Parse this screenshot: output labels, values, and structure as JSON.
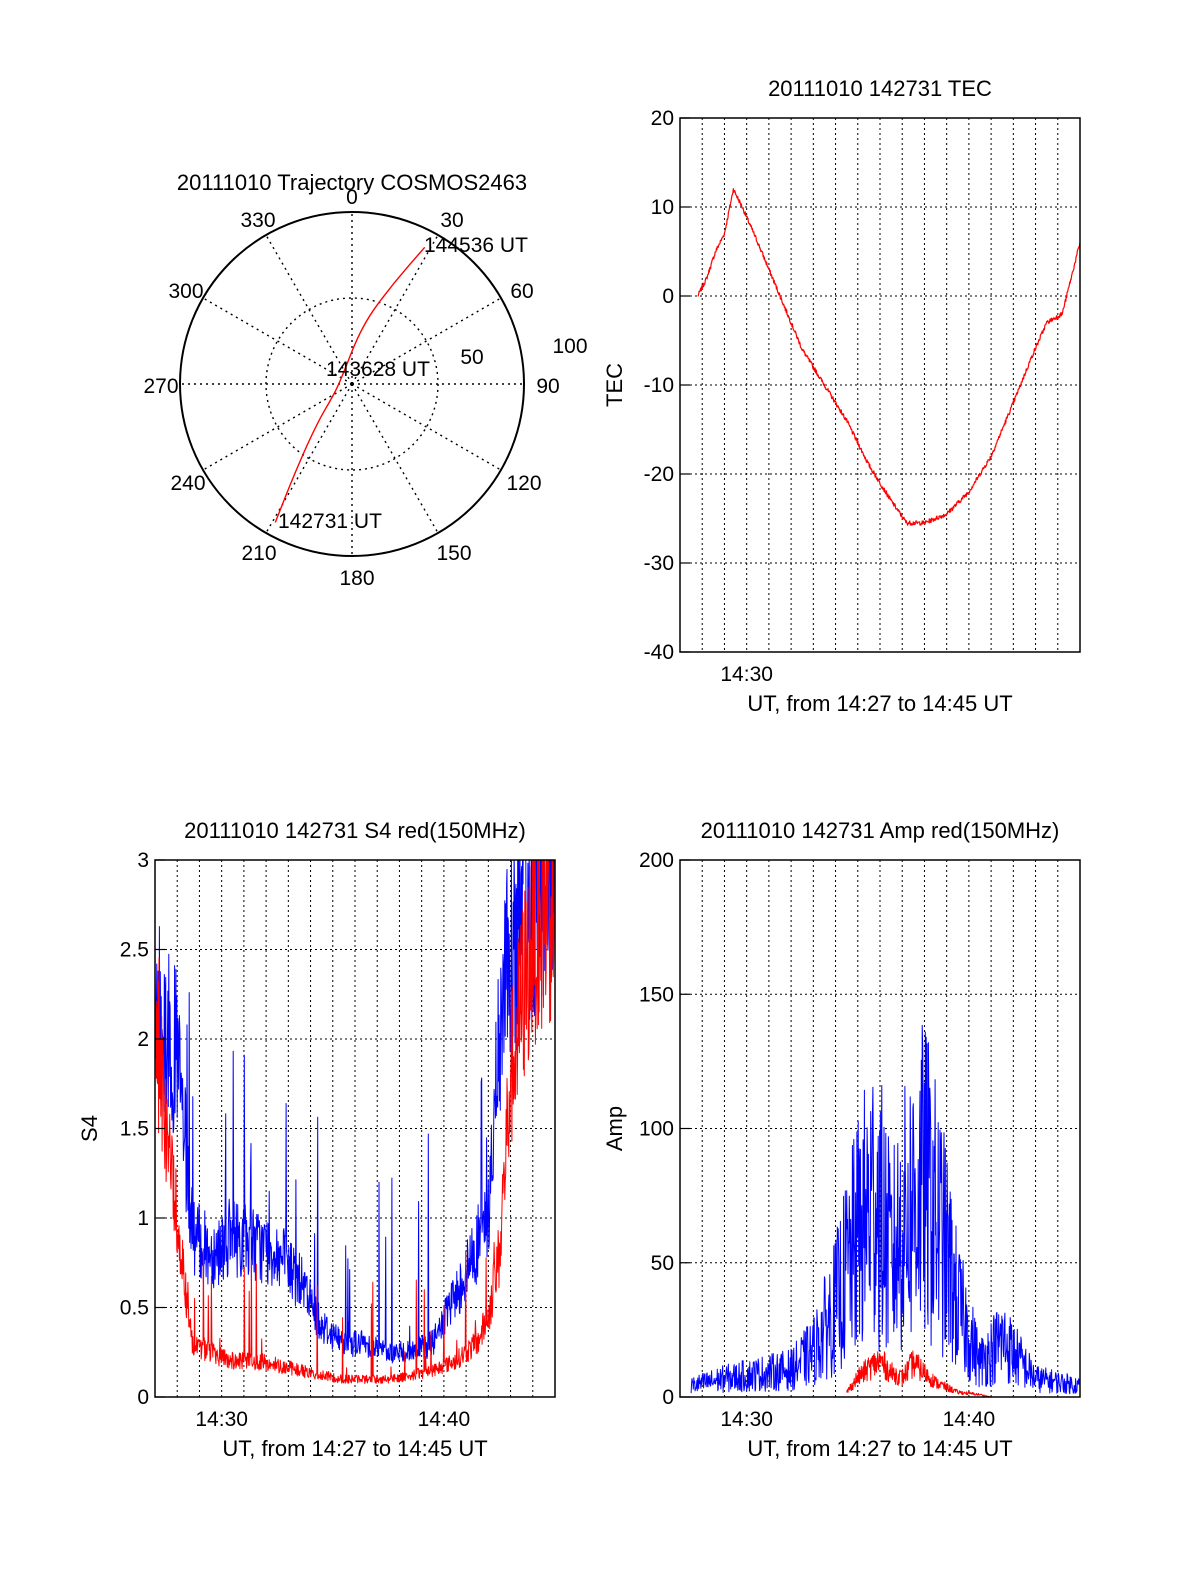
{
  "colors": {
    "red": "#ff0000",
    "blue": "#0000ff",
    "axis": "#000000",
    "grid": "#000000"
  },
  "chart_data": [
    {
      "id": "trajectory",
      "type": "polar",
      "title": "20111010 Trajectory COSMOS2463",
      "azimuth_labels": [
        "0",
        "30",
        "60",
        "90",
        "120",
        "150",
        "180",
        "210",
        "240",
        "270",
        "300",
        "330"
      ],
      "radius_labels": [
        "50",
        "100"
      ],
      "grid": true,
      "track": {
        "color": "#ff0000",
        "points": [
          {
            "az": 209,
            "r": 92
          },
          {
            "az": 213,
            "r": 60
          },
          {
            "az": 222,
            "r": 30
          },
          {
            "az": 240,
            "r": 12
          },
          {
            "az": 300,
            "r": 7
          },
          {
            "az": 10,
            "r": 35
          },
          {
            "az": 22,
            "r": 62
          },
          {
            "az": 28,
            "r": 90
          }
        ],
        "annotations": [
          {
            "text": "142731 UT",
            "az": 209,
            "r": 92
          },
          {
            "text": "143628 UT",
            "az": 290,
            "r": 5
          },
          {
            "text": "144536 UT",
            "az": 28,
            "r": 90
          }
        ]
      }
    },
    {
      "id": "tec",
      "type": "line",
      "title": "20111010 142731 TEC",
      "xlabel": "UT, from 14:27 to 14:45 UT",
      "ylabel": "TEC",
      "xlim": [
        "14:27",
        "14:45"
      ],
      "ylim": [
        -40,
        20
      ],
      "yticks": [
        "20",
        "10",
        "0",
        "-10",
        "-20",
        "-30",
        "-40"
      ],
      "xticks": [
        "14:30"
      ],
      "grid": true,
      "series": [
        {
          "color": "#ff0000",
          "x": [
            "14:27.8",
            "14:28.2",
            "14:28.6",
            "14:29.0",
            "14:29.4",
            "14:29.8",
            "14:30.5",
            "14:31.5",
            "14:32.5",
            "14:33.5",
            "14:34.5",
            "14:35.5",
            "14:36.5",
            "14:37.2",
            "14:38.0",
            "14:39.0",
            "14:40.0",
            "14:41.0",
            "14:42.0",
            "14:42.8",
            "14:43.5",
            "14:44.2",
            "14:44.6",
            "14:45.0"
          ],
          "y": [
            0,
            2,
            5,
            7,
            12,
            10,
            6,
            0,
            -6,
            -10,
            -14,
            -19,
            -23,
            -25.5,
            -25.5,
            -24.5,
            -22,
            -18,
            -12,
            -7,
            -3,
            -2,
            2,
            6
          ]
        }
      ]
    },
    {
      "id": "s4",
      "type": "line",
      "title": "20111010 142731 S4 red(150MHz)",
      "xlabel": "UT, from 14:27 to 14:45 UT",
      "ylabel": "S4",
      "xlim": [
        "14:27",
        "14:45"
      ],
      "ylim": [
        0,
        3
      ],
      "yticks": [
        "3",
        "2.5",
        "2",
        "1.5",
        "1",
        "0.5",
        "0"
      ],
      "xticks": [
        "14:30",
        "14:40"
      ],
      "grid": true,
      "series": [
        {
          "color": "#0000ff",
          "x": [
            "14:27.0",
            "14:28.0",
            "14:28.7",
            "14:29.5",
            "14:30.5",
            "14:31.5",
            "14:32.5",
            "14:33.5",
            "14:34.5",
            "14:35.5",
            "14:36.5",
            "14:37.5",
            "14:38.5",
            "14:39.5",
            "14:40.5",
            "14:41.5",
            "14:42.0",
            "14:42.5",
            "14:43.0",
            "14:44.0",
            "14:45.0"
          ],
          "y": [
            2.2,
            1.9,
            0.9,
            0.8,
            0.9,
            0.85,
            0.8,
            0.65,
            0.4,
            0.3,
            0.3,
            0.25,
            0.25,
            0.3,
            0.55,
            0.85,
            1.0,
            2.0,
            2.5,
            2.8,
            2.9
          ]
        },
        {
          "color": "#ff0000",
          "x": [
            "14:27.0",
            "14:28.0",
            "14:28.7",
            "14:29.5",
            "14:30.5",
            "14:31.5",
            "14:32.5",
            "14:33.5",
            "14:34.5",
            "14:35.5",
            "14:36.5",
            "14:37.5",
            "14:38.5",
            "14:39.5",
            "14:40.5",
            "14:41.5",
            "14:42.0",
            "14:42.5",
            "14:43.0",
            "14:44.0",
            "14:45.0"
          ],
          "y": [
            2.0,
            1.0,
            0.3,
            0.25,
            0.2,
            0.2,
            0.18,
            0.15,
            0.12,
            0.1,
            0.1,
            0.1,
            0.12,
            0.15,
            0.2,
            0.3,
            0.45,
            0.8,
            1.8,
            2.6,
            2.8
          ]
        }
      ]
    },
    {
      "id": "amp",
      "type": "line",
      "title": "20111010 142731 Amp red(150MHz)",
      "xlabel": "UT, from 14:27 to 14:45 UT",
      "ylabel": "Amp",
      "xlim": [
        "14:27",
        "14:45"
      ],
      "ylim": [
        0,
        200
      ],
      "yticks": [
        "200",
        "150",
        "100",
        "50",
        "0"
      ],
      "xticks": [
        "14:30",
        "14:40"
      ],
      "grid": true,
      "series": [
        {
          "color": "#0000ff",
          "x": [
            "14:27.5",
            "14:29.0",
            "14:30.5",
            "14:32.0",
            "14:33.0",
            "14:34.0",
            "14:35.0",
            "14:35.8",
            "14:36.5",
            "14:37.2",
            "14:38.0",
            "14:38.8",
            "14:39.5",
            "14:40.5",
            "14:41.5",
            "14:43.0",
            "14:45.0"
          ],
          "y": [
            5,
            8,
            10,
            12,
            20,
            40,
            70,
            90,
            60,
            80,
            95,
            70,
            40,
            15,
            25,
            8,
            5
          ]
        },
        {
          "color": "#ff0000",
          "x": [
            "14:34.5",
            "14:35.0",
            "14:35.5",
            "14:36.0",
            "14:36.5",
            "14:37.0",
            "14:37.5",
            "14:38.0",
            "14:38.5",
            "14:39.0",
            "14:39.5",
            "14:40.5",
            "14:41.0"
          ],
          "y": [
            2,
            8,
            12,
            15,
            10,
            8,
            14,
            10,
            6,
            4,
            2,
            1,
            0
          ]
        }
      ]
    }
  ]
}
